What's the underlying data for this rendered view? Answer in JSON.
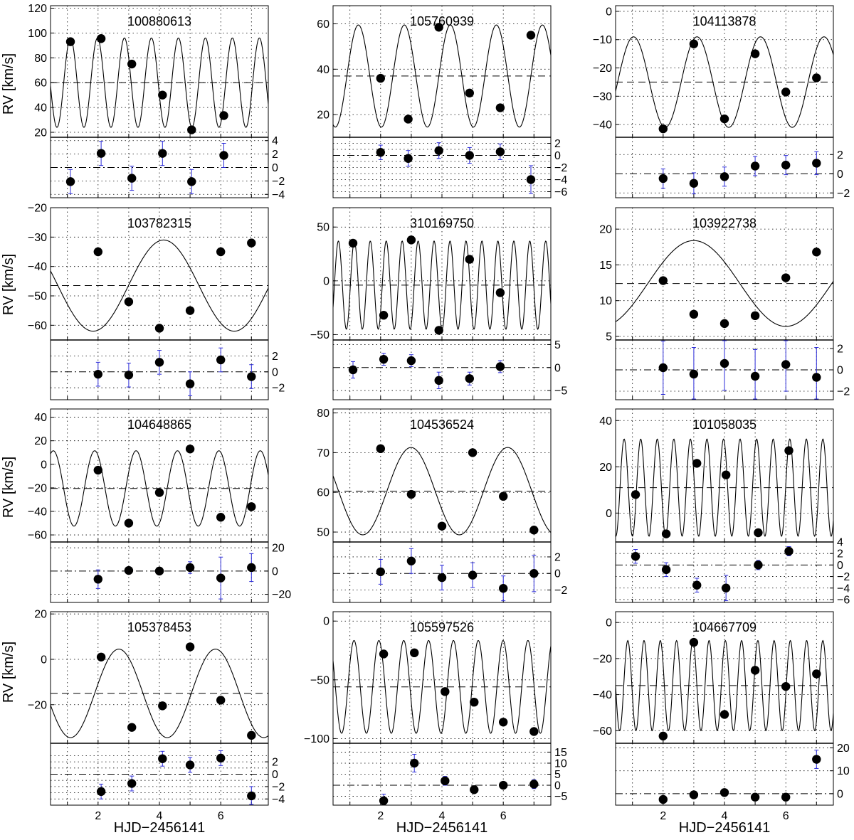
{
  "figure": {
    "xlabel": "HJD−2456141",
    "ylabel": "RV [km/s]"
  },
  "chart_data": [
    {
      "type": "scatter",
      "title": "100880613",
      "x": [
        1.1,
        2.1,
        3.1,
        4.1,
        5.05,
        6.1
      ],
      "rv": [
        93,
        95.5,
        75,
        50,
        22,
        33.5
      ],
      "fit": {
        "mean": 60,
        "amp": 36,
        "period": 0.88,
        "phase": 0.25
      },
      "ylim": [
        16,
        122
      ],
      "yticks": [
        20,
        40,
        60,
        80,
        100,
        120
      ],
      "resid": [
        -2.1,
        2.1,
        -1.6,
        2.1,
        -2.1,
        1.8
      ],
      "rerr": [
        1.8,
        1.8,
        1.8,
        1.8,
        1.8,
        1.8
      ],
      "rlim": [
        -4.5,
        4.5
      ],
      "rticks": [
        -4,
        -2,
        0,
        2,
        4
      ]
    },
    {
      "type": "scatter",
      "title": "105760939",
      "x": [
        2.0,
        2.9,
        3.9,
        4.9,
        5.9,
        6.9
      ],
      "rv": [
        36,
        18,
        58.5,
        29.5,
        23,
        55
      ],
      "fit": {
        "mean": 37,
        "amp": 22.5,
        "period": 1.5,
        "phase": 0.85
      },
      "ylim": [
        10,
        68
      ],
      "yticks": [
        20,
        40,
        60
      ],
      "resid": [
        0.5,
        -0.5,
        0.8,
        0,
        0.6,
        -4
      ],
      "rerr": [
        1.2,
        1.3,
        1.3,
        1.3,
        1.3,
        2.3
      ],
      "rlim": [
        -7,
        3
      ],
      "rticks": [
        -6,
        -4,
        -2,
        0,
        2
      ],
      "rminor": [
        -7,
        -5,
        -3,
        -1,
        1,
        3
      ]
    },
    {
      "type": "scatter",
      "title": "104113878",
      "x": [
        2.0,
        3.0,
        4.0,
        5.0,
        6.0,
        7.0
      ],
      "rv": [
        -41.5,
        -11.5,
        -38,
        -15,
        -28.5,
        -23.5
      ],
      "fit": {
        "mean": -25,
        "amp": 16,
        "period": 2.07,
        "phase": 0.5
      },
      "ylim": [
        -44.5,
        2
      ],
      "yticks": [
        -40,
        -30,
        -20,
        -10,
        0
      ],
      "resid": [
        -0.5,
        -1,
        -0.3,
        0.8,
        0.9,
        1.1
      ],
      "rerr": [
        1.0,
        1.1,
        1.0,
        1.0,
        1.0,
        1.2
      ],
      "rlim": [
        -2.5,
        3.8
      ],
      "rticks": [
        -2,
        0,
        2
      ]
    },
    {
      "type": "scatter",
      "title": "103782315",
      "x": [
        2.0,
        3.0,
        4.0,
        5.0,
        6.0,
        7.0
      ],
      "rv": [
        -35,
        -52,
        -61,
        -55,
        -35,
        -32
      ],
      "fit": {
        "mean": -46.5,
        "amp": 15.5,
        "period": 4.6,
        "phase": 0.9
      },
      "ylim": [
        -65,
        -20
      ],
      "yticks": [
        -60,
        -50,
        -40,
        -30,
        -20
      ],
      "resid": [
        -0.3,
        -0.4,
        1.2,
        -1.5,
        1.5,
        -0.6
      ],
      "rerr": [
        1.5,
        1.5,
        1.5,
        1.5,
        1.5,
        1.5
      ],
      "rlim": [
        -3.5,
        4
      ],
      "rticks": [
        -2,
        0,
        2
      ]
    },
    {
      "type": "scatter",
      "title": "310169750",
      "x": [
        1.1,
        2.1,
        3.0,
        3.9,
        4.9,
        5.9
      ],
      "rv": [
        35,
        -32,
        38,
        -46,
        20,
        -11
      ],
      "fit": {
        "mean": -4,
        "amp": 41,
        "period": 0.52,
        "phase": 0.2
      },
      "ylim": [
        -55,
        68
      ],
      "yticks": [
        -50,
        0,
        50
      ],
      "resid": [
        -0.5,
        1.8,
        1.5,
        -2.8,
        -2.4,
        0.2
      ],
      "rerr": [
        1.8,
        1.3,
        1.3,
        1.8,
        1.4,
        1.3
      ],
      "rlim": [
        -7,
        6
      ],
      "rticks": [
        -5,
        0,
        5
      ]
    },
    {
      "type": "scatter",
      "title": "103922738",
      "x": [
        2.0,
        3.0,
        4.0,
        5.0,
        6.0,
        7.0
      ],
      "rv": [
        12.8,
        8.1,
        6.8,
        7.9,
        13.2,
        16.8
      ],
      "fit": {
        "mean": 12.4,
        "amp": 6.0,
        "period": 6.0,
        "phase": 0.5
      },
      "ylim": [
        4.5,
        23
      ],
      "yticks": [
        5,
        10,
        15,
        20
      ],
      "resid": [
        0.2,
        -0.4,
        0.6,
        -0.6,
        0.5,
        -0.7
      ],
      "rerr": [
        2.5,
        2.5,
        2.5,
        2.5,
        2.5,
        2.8
      ],
      "rlim": [
        -2.8,
        2.8
      ],
      "rticks": [
        -2,
        0,
        2
      ]
    },
    {
      "type": "scatter",
      "title": "104648865",
      "x": [
        2.0,
        3.0,
        4.0,
        5.0,
        6.0,
        7.0
      ],
      "rv": [
        -5,
        -50,
        -24,
        13,
        -45,
        -36
      ],
      "fit": {
        "mean": -20.5,
        "amp": 32,
        "period": 1.35,
        "phase": 0.4
      },
      "ylim": [
        -66,
        47
      ],
      "yticks": [
        -60,
        -40,
        -20,
        0,
        20,
        40
      ],
      "resid": [
        -7,
        0.5,
        0,
        3,
        -6,
        3
      ],
      "rerr": [
        8,
        3,
        3,
        5,
        18,
        12
      ],
      "rlim": [
        -27,
        25
      ],
      "rticks": [
        -20,
        0,
        20
      ]
    },
    {
      "type": "scatter",
      "title": "104536524",
      "x": [
        2.0,
        3.0,
        4.0,
        5.0,
        6.0,
        7.0
      ],
      "rv": [
        71,
        59.5,
        51.5,
        70,
        59,
        50.5
      ],
      "fit": {
        "mean": 60.3,
        "amp": 11,
        "period": 3.15,
        "phase": 0.95
      },
      "ylim": [
        47.5,
        81
      ],
      "yticks": [
        50,
        60,
        70,
        80
      ],
      "resid": [
        0.2,
        1.5,
        -0.5,
        -0.2,
        -1.8,
        0
      ],
      "rerr": [
        1.5,
        1.5,
        1.5,
        1.5,
        1.5,
        2.2
      ],
      "rlim": [
        -3.5,
        3.8
      ],
      "rticks": [
        -2,
        0,
        2
      ]
    },
    {
      "type": "scatter",
      "title": "101058035",
      "x": [
        1.1,
        2.1,
        3.1,
        4.05,
        5.1,
        6.1
      ],
      "rv": [
        8,
        -9,
        21.5,
        16.5,
        -8.5,
        27
      ],
      "fit": {
        "mean": 11,
        "amp": 21,
        "period": 0.54,
        "phase": 0.35
      },
      "ylim": [
        -12.5,
        45
      ],
      "yticks": [
        0,
        20,
        40
      ],
      "resid": [
        1.5,
        -0.8,
        -3.5,
        -4,
        0,
        2.4
      ],
      "rerr": [
        1.2,
        1.2,
        1.2,
        2.2,
        0.8,
        0.8
      ],
      "rlim": [
        -6.5,
        4
      ],
      "rticks": [
        -6,
        -4,
        -2,
        0,
        2,
        4
      ]
    },
    {
      "type": "scatter",
      "title": "105378453",
      "x": [
        2.1,
        3.1,
        4.1,
        5.0,
        6.0,
        7.0
      ],
      "rv": [
        1,
        -30,
        -20.5,
        5.5,
        -18,
        -33.5
      ],
      "fit": {
        "mean": -15,
        "amp": 19.5,
        "period": 3.15,
        "phase": 0.85
      },
      "ylim": [
        -37,
        21
      ],
      "yticks": [
        -20,
        0,
        20
      ],
      "resid": [
        -2.8,
        -1.5,
        2.5,
        1.5,
        2.6,
        -3.5
      ],
      "rerr": [
        1.2,
        1.2,
        1.2,
        1.2,
        1.2,
        1.5
      ],
      "rlim": [
        -5,
        5
      ],
      "rticks": [
        -4,
        -2,
        0,
        2
      ],
      "rminor": [
        -5,
        -3,
        -1,
        1,
        3
      ]
    },
    {
      "type": "scatter",
      "title": "105597526",
      "x": [
        2.1,
        3.1,
        4.1,
        5.05,
        6.0,
        7.0
      ],
      "rv": [
        -28,
        -27,
        -60,
        -69,
        -86,
        -94
      ],
      "fit": {
        "mean": -56,
        "amp": 39.5,
        "period": 0.81,
        "phase": 0.4
      },
      "ylim": [
        -104,
        8
      ],
      "yticks": [
        -100,
        -50,
        0
      ],
      "resid": [
        -7,
        10,
        2,
        -2,
        0,
        0.5
      ],
      "rerr": [
        3,
        4,
        2,
        1,
        1,
        2
      ],
      "rlim": [
        -9,
        19
      ],
      "rticks": [
        -5,
        0,
        5,
        10,
        15
      ]
    },
    {
      "type": "scatter",
      "title": "104667709",
      "x": [
        2.0,
        3.0,
        4.0,
        5.0,
        6.0,
        7.0
      ],
      "rv": [
        -63,
        -11,
        -51,
        -26.5,
        -35.5,
        -28.5
      ],
      "fit": {
        "mean": -35,
        "amp": 25,
        "period": 0.53,
        "phase": 0.6
      },
      "ylim": [
        -67,
        6
      ],
      "yticks": [
        -60,
        -40,
        -20,
        0
      ],
      "resid": [
        -2.5,
        -0.5,
        0.5,
        -1.5,
        -1.5,
        15
      ],
      "rerr": [
        1.5,
        1.5,
        1.5,
        1.5,
        1.5,
        4
      ],
      "rlim": [
        -5,
        22
      ],
      "rticks": [
        0,
        10,
        20
      ]
    }
  ]
}
